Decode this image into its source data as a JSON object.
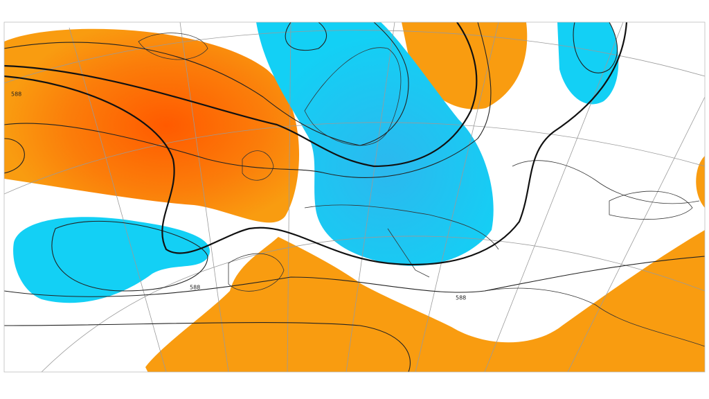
{
  "map": {
    "contour_labels": [
      "588",
      "588",
      "588"
    ]
  }
}
